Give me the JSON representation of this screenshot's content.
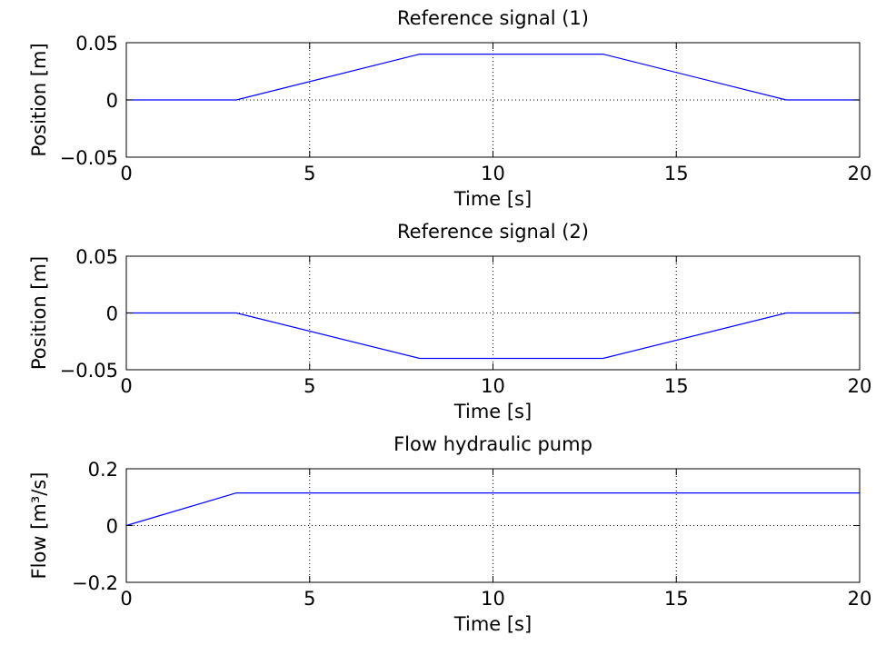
{
  "chart_data": [
    {
      "type": "line",
      "title": "Reference signal (1)",
      "xlabel": "Time [s]",
      "ylabel": "Position [m]",
      "xlim": [
        0,
        20
      ],
      "ylim": [
        -0.05,
        0.05
      ],
      "xticks": [
        "0",
        "5",
        "10",
        "15",
        "20"
      ],
      "yticks": [
        "−0.05",
        "0",
        "0.05"
      ],
      "ytick_values": [
        -0.05,
        0,
        0.05
      ],
      "grid": true,
      "series": [
        {
          "color": "#0000ff",
          "x": [
            0,
            3,
            8,
            13,
            18,
            20
          ],
          "y": [
            0,
            0,
            0.04,
            0.04,
            0,
            0
          ]
        }
      ]
    },
    {
      "type": "line",
      "title": "Reference signal (2)",
      "xlabel": "Time [s]",
      "ylabel": "Position [m]",
      "xlim": [
        0,
        20
      ],
      "ylim": [
        -0.05,
        0.05
      ],
      "xticks": [
        "0",
        "5",
        "10",
        "15",
        "20"
      ],
      "yticks": [
        "−0.05",
        "0",
        "0.05"
      ],
      "ytick_values": [
        -0.05,
        0,
        0.05
      ],
      "grid": true,
      "series": [
        {
          "color": "#0000ff",
          "x": [
            0,
            3,
            8,
            13,
            18,
            20
          ],
          "y": [
            0,
            0,
            -0.04,
            -0.04,
            0,
            0
          ]
        }
      ]
    },
    {
      "type": "line",
      "title": "Flow hydraulic pump",
      "xlabel": "Time [s]",
      "ylabel": "Flow [m³/s]",
      "xlim": [
        0,
        20
      ],
      "ylim": [
        -0.2,
        0.2
      ],
      "xticks": [
        "0",
        "5",
        "10",
        "15",
        "20"
      ],
      "yticks": [
        "−0.2",
        "0",
        "0.2"
      ],
      "ytick_values": [
        -0.2,
        0,
        0.2
      ],
      "grid": true,
      "series": [
        {
          "color": "#0000ff",
          "x": [
            0,
            3,
            20
          ],
          "y": [
            0,
            0.115,
            0.115
          ]
        }
      ]
    }
  ]
}
